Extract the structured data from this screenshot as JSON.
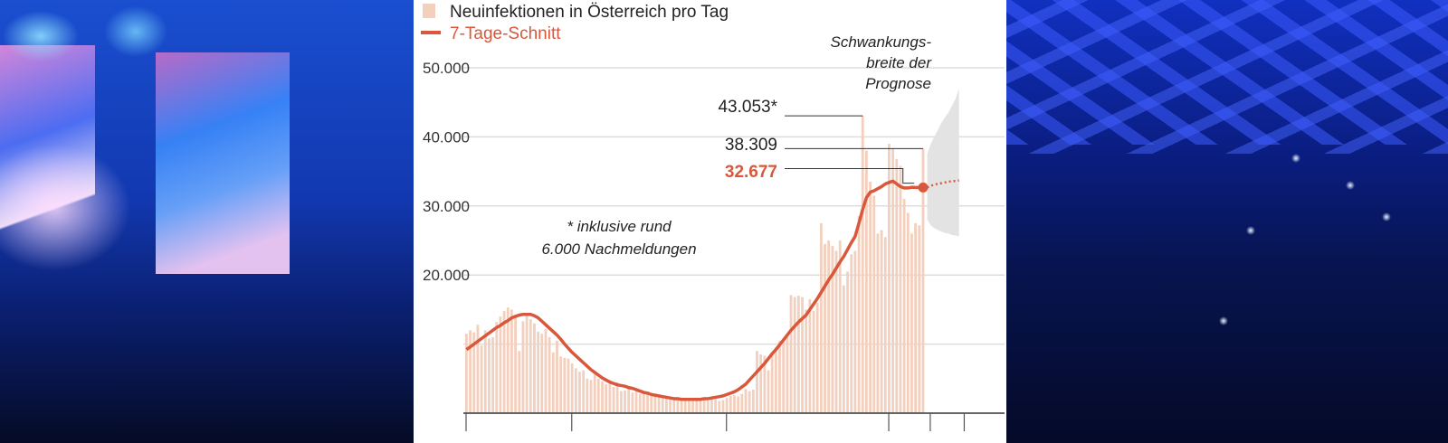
{
  "photos": {
    "left": {
      "description": "concert stage with blue lights and video screens, crowd in foreground"
    },
    "right": {
      "description": "arena crowd with phone flashlights under blue lighting"
    }
  },
  "colors": {
    "bar": "#f3cfbe",
    "line": "#d9583b",
    "forecast_band": "#e3e3e3",
    "gridline": "#dddddd",
    "axis": "#333333",
    "highlight_text": "#d9583b"
  },
  "chart_data": {
    "type": "bar",
    "title": "",
    "legend": [
      {
        "label": "Neuinfektionen in Österreich pro Tag",
        "kind": "bar"
      },
      {
        "label": "7-Tage-Schnitt",
        "kind": "line"
      }
    ],
    "legend_position": "top-left",
    "xlabel": "",
    "ylabel": "",
    "ylim": [
      0,
      50000
    ],
    "yticks": [
      {
        "value": 50000,
        "label": "50.000"
      },
      {
        "value": 40000,
        "label": "40.000"
      },
      {
        "value": 30000,
        "label": "30.000"
      },
      {
        "value": 20000,
        "label": "20.000"
      },
      {
        "value": 10000,
        "label": ""
      }
    ],
    "grid": true,
    "x_tick_days": [
      0,
      28,
      69,
      112,
      123,
      132
    ],
    "series": [
      {
        "name": "Neuinfektionen in Österreich pro Tag",
        "type": "bar",
        "values": [
          11500,
          12000,
          11700,
          12800,
          9800,
          12000,
          10800,
          11000,
          13200,
          14000,
          14800,
          15300,
          15000,
          14300,
          9000,
          13300,
          14300,
          13600,
          13000,
          11800,
          11500,
          12200,
          11000,
          8800,
          10500,
          8200,
          8000,
          7900,
          7200,
          6500,
          6000,
          6200,
          5000,
          4800,
          5600,
          5000,
          4600,
          4200,
          4800,
          3800,
          4500,
          3200,
          3300,
          3600,
          3000,
          3200,
          2800,
          3000,
          3100,
          2500,
          2600,
          2300,
          2200,
          2400,
          2000,
          2300,
          2100,
          1900,
          2000,
          2100,
          2000,
          1900,
          1900,
          2000,
          1800,
          2100,
          2000,
          1800,
          1900,
          2200,
          2500,
          2600,
          2400,
          2800,
          3500,
          3200,
          3400,
          9000,
          8500,
          8300,
          6200,
          8500,
          9500,
          10500,
          10800,
          11200,
          17100,
          16800,
          17000,
          16800,
          15000,
          16500,
          14800,
          16000,
          27500,
          24500,
          25000,
          24200,
          23500,
          25000,
          18500,
          20500,
          23000,
          23500,
          28500,
          43053,
          38000,
          33500,
          31500,
          26000,
          26500,
          25500,
          39000,
          38300,
          36800,
          35800,
          31000,
          29000,
          26000,
          27500,
          27200,
          38309
        ],
        "annotations": [
          {
            "label": "43.053*",
            "value": 43053
          },
          {
            "label": "38.309",
            "value": 38309
          }
        ]
      },
      {
        "name": "7-Tage-Schnitt",
        "type": "line",
        "values": [
          9200,
          9600,
          10000,
          10400,
          10800,
          11200,
          11600,
          12000,
          12400,
          12700,
          13100,
          13400,
          13800,
          14000,
          14200,
          14300,
          14300,
          14300,
          14100,
          13800,
          13300,
          12800,
          12300,
          11800,
          11300,
          10700,
          10000,
          9400,
          8800,
          8300,
          7800,
          7300,
          6800,
          6300,
          5900,
          5500,
          5100,
          4800,
          4500,
          4300,
          4100,
          4000,
          3900,
          3700,
          3600,
          3400,
          3200,
          3000,
          2900,
          2700,
          2600,
          2500,
          2400,
          2300,
          2200,
          2100,
          2100,
          2000,
          2000,
          2000,
          2000,
          2000,
          2000,
          2100,
          2100,
          2200,
          2300,
          2400,
          2500,
          2700,
          2900,
          3100,
          3400,
          3800,
          4200,
          4800,
          5400,
          6000,
          6600,
          7200,
          7900,
          8600,
          9200,
          9900,
          10600,
          11300,
          12000,
          12600,
          13200,
          13700,
          14200,
          15000,
          15800,
          16600,
          17500,
          18400,
          19300,
          20100,
          21000,
          21900,
          22700,
          23700,
          24700,
          25600,
          27500,
          29500,
          31200,
          32000,
          32200,
          32500,
          32800,
          33200,
          33400,
          33600,
          33200,
          32800,
          32600,
          32600,
          32700,
          32677,
          32677,
          32677
        ],
        "annotations": [
          {
            "label": "32.677",
            "value": 32677
          }
        ]
      },
      {
        "name": "Prognose",
        "type": "forecast",
        "center": [
          32677,
          32900,
          33100,
          33200,
          33300,
          33400,
          33500,
          33600,
          33600,
          33700
        ],
        "upper": [
          37500,
          39000,
          40000,
          41000,
          42000,
          42800,
          43500,
          44500,
          45500,
          47000
        ],
        "lower": [
          28000,
          27200,
          26800,
          26500,
          26300,
          26100,
          26000,
          25800,
          25700,
          25600
        ]
      }
    ],
    "notes": [
      {
        "text_line1": "* inklusive rund",
        "text_line2": "6.000 Nachmeldungen"
      },
      {
        "text_line1": "Schwankungs-",
        "text_line2": "breite der",
        "text_line3": "Prognose"
      }
    ]
  }
}
